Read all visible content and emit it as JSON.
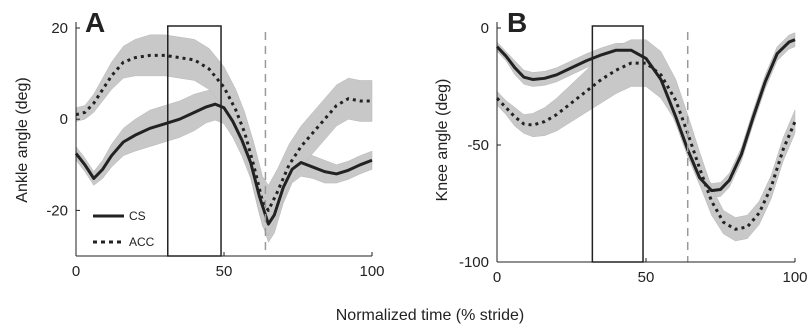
{
  "xlabel_shared": "Normalized time (% stride)",
  "chart_data": [
    {
      "type": "line",
      "panel_label": "A",
      "ylabel": "Ankle angle (deg)",
      "xlim": [
        0,
        100
      ],
      "ylim": [
        -30,
        20
      ],
      "xticks": [
        0,
        50,
        100
      ],
      "yticks": [
        -20,
        0,
        20
      ],
      "grid": false,
      "box_region": [
        31,
        49
      ],
      "toe_off_line_x": 64,
      "legend": {
        "placement": "lower-left",
        "entries": [
          "CS",
          "ACC"
        ]
      },
      "series": [
        {
          "name": "CS",
          "style": "solid",
          "x": [
            0,
            3,
            6,
            9,
            12,
            16,
            20,
            25,
            30,
            35,
            40,
            44,
            47,
            50,
            53,
            56,
            59,
            62,
            65,
            67,
            70,
            73,
            76,
            80,
            84,
            88,
            92,
            96,
            100
          ],
          "y": [
            -7.5,
            -10,
            -13,
            -11,
            -8,
            -5,
            -3.5,
            -2,
            -1,
            0,
            1.5,
            2.7,
            3.3,
            2.5,
            -0.5,
            -4.5,
            -9.5,
            -17,
            -23,
            -21,
            -15,
            -11,
            -9.5,
            -10.5,
            -11.5,
            -12,
            -11.2,
            -10,
            -9
          ],
          "spread": [
            1.5,
            1.5,
            1.5,
            2,
            2.5,
            3,
            3.5,
            4,
            4,
            4,
            4,
            3.5,
            3.5,
            3.5,
            3.5,
            3.5,
            3.5,
            4,
            4,
            4,
            3.5,
            3,
            3,
            2.5,
            2.5,
            2,
            2,
            2,
            2
          ]
        },
        {
          "name": "ACC",
          "style": "dotted",
          "x": [
            0,
            3,
            6,
            9,
            12,
            16,
            20,
            25,
            30,
            35,
            40,
            45,
            50,
            54,
            57,
            60,
            63,
            65,
            68,
            72,
            76,
            80,
            84,
            88,
            92,
            96,
            100
          ],
          "y": [
            1,
            1.5,
            3.5,
            6.5,
            9.5,
            12.5,
            13.5,
            14,
            14,
            13.5,
            13,
            11,
            7,
            2,
            -3,
            -10,
            -18,
            -20,
            -16,
            -10,
            -6,
            -3,
            0,
            3,
            4.5,
            4,
            4
          ],
          "spread": [
            1.5,
            1.5,
            2,
            2.5,
            3,
            3.5,
            4,
            4.5,
            4.5,
            4.5,
            4.5,
            4.5,
            4.5,
            4.5,
            4.5,
            5,
            5.5,
            5.5,
            5,
            4.5,
            4.5,
            4.5,
            4.5,
            4.5,
            4.5,
            4.5,
            4.5
          ]
        }
      ]
    },
    {
      "type": "line",
      "panel_label": "B",
      "ylabel": "Knee angle (deg)",
      "xlim": [
        0,
        100
      ],
      "ylim": [
        -100,
        0
      ],
      "xticks": [
        0,
        50,
        100
      ],
      "yticks": [
        -100,
        -50,
        0
      ],
      "grid": false,
      "box_region": [
        32,
        49
      ],
      "toe_off_line_x": 64,
      "series": [
        {
          "name": "CS",
          "style": "solid",
          "x": [
            0,
            3,
            6,
            9,
            12,
            16,
            20,
            25,
            30,
            35,
            40,
            45,
            50,
            55,
            60,
            64,
            68,
            72,
            75,
            78,
            82,
            86,
            90,
            94,
            98,
            100
          ],
          "y": [
            -8,
            -12,
            -17,
            -21,
            -22,
            -21.5,
            -20,
            -17,
            -14,
            -11.5,
            -9.5,
            -9.5,
            -13,
            -22,
            -38,
            -52,
            -64,
            -69.5,
            -69,
            -65,
            -54,
            -38,
            -23,
            -11,
            -6,
            -5
          ],
          "spread": [
            2,
            2,
            3,
            3,
            3,
            3,
            3,
            3,
            3,
            3,
            3,
            3,
            3,
            3,
            3,
            3,
            3,
            3,
            3,
            3,
            3,
            3,
            3,
            3,
            3,
            3
          ]
        },
        {
          "name": "ACC",
          "style": "dotted",
          "x": [
            0,
            3,
            6,
            9,
            12,
            16,
            20,
            25,
            30,
            35,
            40,
            45,
            50,
            55,
            60,
            64,
            68,
            72,
            76,
            80,
            84,
            88,
            92,
            96,
            100
          ],
          "y": [
            -30,
            -34,
            -38,
            -41,
            -41.5,
            -40,
            -37,
            -32,
            -27,
            -22,
            -18,
            -15,
            -15,
            -20,
            -31,
            -45,
            -60,
            -74,
            -83,
            -86,
            -85,
            -79,
            -68,
            -52,
            -40
          ],
          "spread": [
            3,
            3,
            4,
            4,
            5,
            6,
            7,
            8,
            9,
            10,
            10,
            10,
            10,
            10,
            9,
            8,
            7,
            6,
            5,
            5,
            5,
            5,
            5,
            5,
            5
          ]
        }
      ]
    }
  ]
}
